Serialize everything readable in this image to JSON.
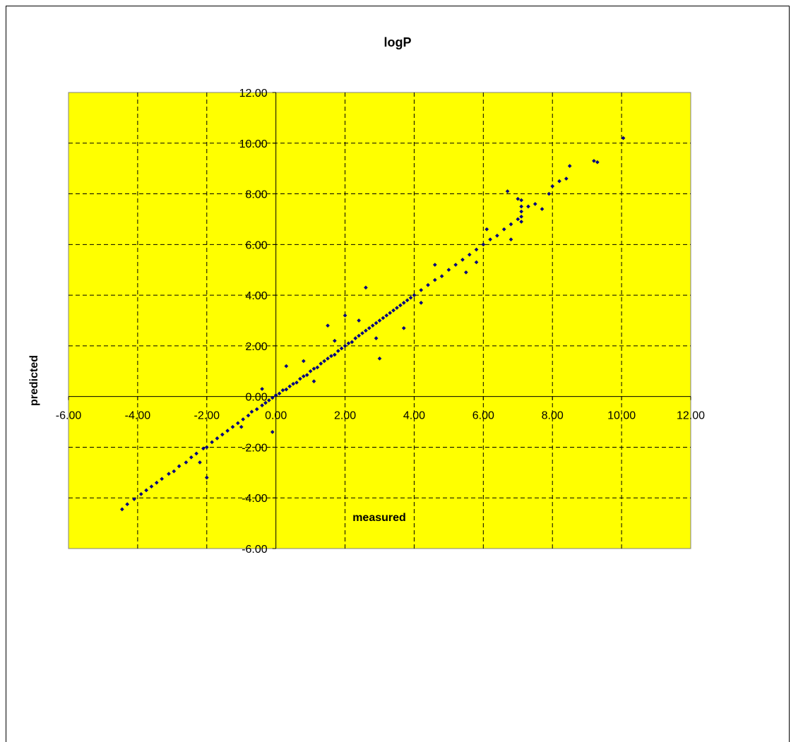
{
  "chart_data": {
    "type": "scatter",
    "title": "logP",
    "xlabel": "measured",
    "ylabel": "predicted",
    "xlim": [
      -6,
      12
    ],
    "ylim": [
      -6,
      12
    ],
    "x_ticks": [
      "-6.00",
      "-4.00",
      "-2.00",
      "0.00",
      "2.00",
      "4.00",
      "6.00",
      "8.00",
      "10.00",
      "12.00"
    ],
    "y_ticks": [
      "-6.00",
      "-4.00",
      "-2.00",
      "0.00",
      "2.00",
      "4.00",
      "6.00",
      "8.00",
      "10.00",
      "12.00"
    ],
    "grid": true,
    "plot_background": "#ffff00",
    "marker_color": "#00007f",
    "series": [
      {
        "points": [
          [
            -4.45,
            -4.45
          ],
          [
            -4.3,
            -4.25
          ],
          [
            -4.1,
            -4.05
          ],
          [
            -3.9,
            -3.85
          ],
          [
            -3.75,
            -3.7
          ],
          [
            -3.6,
            -3.55
          ],
          [
            -3.45,
            -3.4
          ],
          [
            -3.3,
            -3.25
          ],
          [
            -3.1,
            -3.05
          ],
          [
            -2.95,
            -2.95
          ],
          [
            -2.8,
            -2.75
          ],
          [
            -2.6,
            -2.6
          ],
          [
            -2.45,
            -2.4
          ],
          [
            -2.3,
            -2.25
          ],
          [
            -2.1,
            -2.05
          ],
          [
            -2.0,
            -2.0
          ],
          [
            -1.85,
            -1.8
          ],
          [
            -1.7,
            -1.65
          ],
          [
            -1.55,
            -1.5
          ],
          [
            -1.4,
            -1.35
          ],
          [
            -1.25,
            -1.2
          ],
          [
            -1.1,
            -1.05
          ],
          [
            -0.95,
            -0.9
          ],
          [
            -0.8,
            -0.75
          ],
          [
            -0.7,
            -0.6
          ],
          [
            -0.55,
            -0.5
          ],
          [
            -0.4,
            -0.35
          ],
          [
            -0.3,
            -0.25
          ],
          [
            -0.2,
            -0.15
          ],
          [
            -0.1,
            -0.05
          ],
          [
            0.0,
            0.05
          ],
          [
            0.1,
            0.12
          ],
          [
            0.2,
            0.25
          ],
          [
            0.3,
            0.28
          ],
          [
            0.4,
            0.4
          ],
          [
            0.5,
            0.5
          ],
          [
            0.6,
            0.55
          ],
          [
            0.7,
            0.7
          ],
          [
            0.8,
            0.8
          ],
          [
            0.9,
            0.85
          ],
          [
            1.0,
            1.0
          ],
          [
            1.1,
            1.1
          ],
          [
            1.2,
            1.15
          ],
          [
            1.3,
            1.3
          ],
          [
            1.4,
            1.4
          ],
          [
            1.5,
            1.5
          ],
          [
            1.6,
            1.6
          ],
          [
            1.7,
            1.65
          ],
          [
            1.8,
            1.8
          ],
          [
            1.9,
            1.9
          ],
          [
            2.0,
            2.0
          ],
          [
            2.1,
            2.1
          ],
          [
            2.2,
            2.15
          ],
          [
            2.3,
            2.3
          ],
          [
            2.4,
            2.4
          ],
          [
            2.5,
            2.5
          ],
          [
            2.6,
            2.6
          ],
          [
            2.7,
            2.7
          ],
          [
            2.8,
            2.8
          ],
          [
            2.9,
            2.9
          ],
          [
            3.0,
            3.0
          ],
          [
            3.1,
            3.1
          ],
          [
            3.2,
            3.2
          ],
          [
            3.3,
            3.3
          ],
          [
            3.4,
            3.4
          ],
          [
            3.5,
            3.5
          ],
          [
            3.6,
            3.6
          ],
          [
            3.7,
            3.7
          ],
          [
            3.8,
            3.8
          ],
          [
            3.9,
            3.9
          ],
          [
            4.0,
            4.0
          ],
          [
            4.2,
            4.2
          ],
          [
            4.4,
            4.4
          ],
          [
            4.6,
            4.6
          ],
          [
            4.8,
            4.75
          ],
          [
            5.0,
            5.0
          ],
          [
            5.2,
            5.2
          ],
          [
            5.4,
            5.4
          ],
          [
            5.6,
            5.6
          ],
          [
            5.8,
            5.8
          ],
          [
            6.0,
            6.0
          ],
          [
            6.2,
            6.2
          ],
          [
            6.4,
            6.35
          ],
          [
            6.6,
            6.6
          ],
          [
            6.8,
            6.8
          ],
          [
            7.0,
            7.0
          ],
          [
            7.1,
            6.9
          ],
          [
            7.1,
            7.1
          ],
          [
            7.1,
            7.3
          ],
          [
            7.1,
            7.5
          ],
          [
            7.1,
            7.75
          ],
          [
            7.3,
            7.5
          ],
          [
            7.5,
            7.6
          ],
          [
            7.7,
            7.4
          ],
          [
            7.9,
            8.0
          ],
          [
            8.0,
            8.3
          ],
          [
            8.2,
            8.5
          ],
          [
            8.4,
            8.6
          ],
          [
            8.5,
            9.1
          ],
          [
            9.2,
            9.3
          ],
          [
            9.3,
            9.25
          ],
          [
            10.05,
            10.2
          ],
          [
            6.7,
            8.1
          ],
          [
            7.0,
            7.8
          ],
          [
            6.8,
            6.2
          ],
          [
            5.8,
            5.3
          ],
          [
            3.7,
            2.7
          ],
          [
            3.0,
            1.5
          ],
          [
            2.0,
            3.2
          ],
          [
            1.5,
            2.8
          ],
          [
            0.3,
            1.2
          ],
          [
            -0.1,
            -1.4
          ],
          [
            -1.0,
            -1.2
          ],
          [
            -2.0,
            -3.2
          ],
          [
            -2.2,
            -2.6
          ],
          [
            2.6,
            4.3
          ],
          [
            4.2,
            3.7
          ],
          [
            1.1,
            0.6
          ],
          [
            0.8,
            1.4
          ],
          [
            -0.4,
            0.3
          ],
          [
            5.5,
            4.9
          ],
          [
            6.1,
            6.6
          ],
          [
            4.6,
            5.2
          ],
          [
            2.9,
            2.3
          ],
          [
            2.4,
            3.0
          ],
          [
            1.7,
            2.2
          ]
        ]
      }
    ]
  }
}
